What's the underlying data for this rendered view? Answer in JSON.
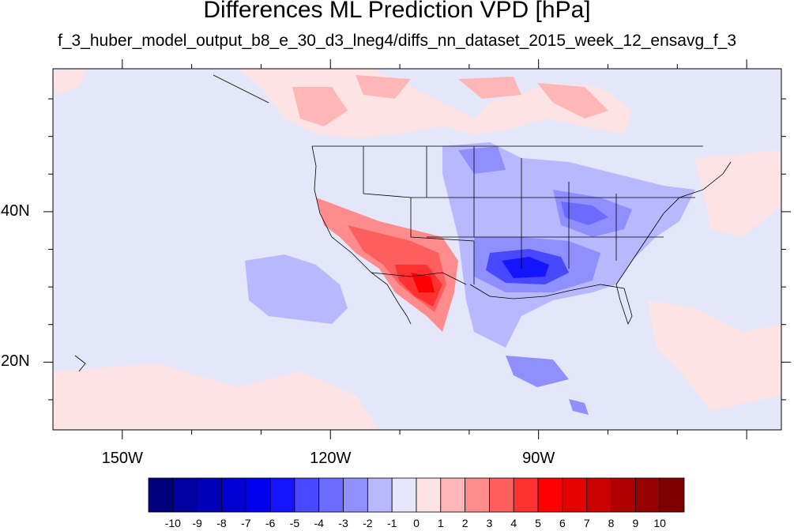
{
  "title": "Differences ML Prediction VPD [hPa]",
  "subtitle": "f_3_huber_model_output_b8_e_30_d3_lneg4/diffs_nn_dataset_2015_week_12_ensavg_f_3",
  "axes": {
    "x_ticks": [
      {
        "label": "150W",
        "lon": -150
      },
      {
        "label": "120W",
        "lon": -120
      },
      {
        "label": "90W",
        "lon": -90
      }
    ],
    "y_ticks": [
      {
        "label": "40N",
        "lat": 40
      },
      {
        "label": "20N",
        "lat": 20
      }
    ]
  },
  "colorbar": {
    "labels": [
      "-10",
      "-9",
      "-8",
      "-7",
      "-6",
      "-5",
      "-4",
      "-3",
      "-2",
      "-1",
      "0",
      "1",
      "2",
      "3",
      "4",
      "5",
      "6",
      "7",
      "8",
      "9",
      "10"
    ],
    "colors": [
      "#00007e",
      "#00009e",
      "#0000b6",
      "#0000d2",
      "#0000ee",
      "#1414ff",
      "#4848ff",
      "#6b6bff",
      "#8f8fff",
      "#b8b8ff",
      "#e5e5fb",
      "#fde3e3",
      "#ffb6b6",
      "#ff8c8c",
      "#ff5e5e",
      "#ff3030",
      "#ff0000",
      "#e60000",
      "#cc0000",
      "#b00000",
      "#960000",
      "#7e0000"
    ]
  },
  "map": {
    "background_color": "#e4e6fa",
    "lon_range": [
      -160,
      -55
    ],
    "lat_range": [
      11,
      59
    ]
  }
}
